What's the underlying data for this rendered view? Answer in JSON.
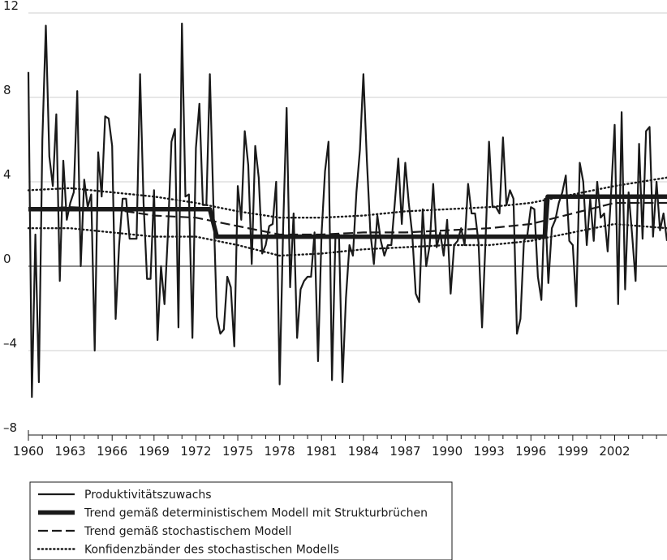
{
  "chart_data": {
    "type": "line",
    "title": "",
    "xlabel": "",
    "ylabel": "",
    "xlim": [
      1960,
      2005.75
    ],
    "ylim": [
      -8,
      12
    ],
    "x_ticks": [
      1960,
      1963,
      1966,
      1969,
      1972,
      1975,
      1978,
      1981,
      1984,
      1987,
      1990,
      1993,
      1996,
      1999,
      2002
    ],
    "x_tick_labels": [
      "1960",
      "1963",
      "1966",
      "1969",
      "1972",
      "1975",
      "1978",
      "1981",
      "1984",
      "1987",
      "1990",
      "1993",
      "1996",
      "1999",
      "2002"
    ],
    "y_ticks": [
      -8,
      -4,
      0,
      4,
      8,
      12
    ],
    "y_tick_labels": [
      "–8",
      "–4",
      "0",
      "4",
      "8",
      "12"
    ],
    "grid": "horizontal",
    "legend_position": "bottom-left",
    "series": [
      {
        "name": "Produktivitätszuwachs",
        "style": "solid-thin",
        "color": "#1a1a1a",
        "points": [
          [
            1960.0,
            9.2
          ],
          [
            1960.25,
            -6.2
          ],
          [
            1960.5,
            1.5
          ],
          [
            1960.75,
            -5.5
          ],
          [
            1961.0,
            6.0
          ],
          [
            1961.25,
            11.4
          ],
          [
            1961.5,
            5.2
          ],
          [
            1961.75,
            3.8
          ],
          [
            1962.0,
            7.2
          ],
          [
            1962.25,
            -0.7
          ],
          [
            1962.5,
            5.0
          ],
          [
            1962.75,
            2.2
          ],
          [
            1963.0,
            3.0
          ],
          [
            1963.25,
            3.5
          ],
          [
            1963.5,
            8.3
          ],
          [
            1963.75,
            0.0
          ],
          [
            1964.0,
            4.1
          ],
          [
            1964.25,
            2.8
          ],
          [
            1964.5,
            3.4
          ],
          [
            1964.75,
            -4.0
          ],
          [
            1965.0,
            5.4
          ],
          [
            1965.25,
            3.3
          ],
          [
            1965.5,
            7.1
          ],
          [
            1965.75,
            7.0
          ],
          [
            1966.0,
            5.7
          ],
          [
            1966.25,
            -2.5
          ],
          [
            1966.5,
            1.0
          ],
          [
            1966.75,
            3.2
          ],
          [
            1967.0,
            3.2
          ],
          [
            1967.25,
            1.3
          ],
          [
            1967.5,
            1.3
          ],
          [
            1967.75,
            1.3
          ],
          [
            1968.0,
            9.1
          ],
          [
            1968.25,
            3.0
          ],
          [
            1968.5,
            -0.6
          ],
          [
            1968.75,
            -0.6
          ],
          [
            1969.0,
            3.6
          ],
          [
            1969.25,
            -3.5
          ],
          [
            1969.5,
            0.0
          ],
          [
            1969.75,
            -1.8
          ],
          [
            1970.0,
            1.6
          ],
          [
            1970.25,
            5.9
          ],
          [
            1970.5,
            6.5
          ],
          [
            1970.75,
            -2.9
          ],
          [
            1971.0,
            11.5
          ],
          [
            1971.25,
            3.3
          ],
          [
            1971.5,
            3.4
          ],
          [
            1971.75,
            -3.4
          ],
          [
            1972.0,
            5.6
          ],
          [
            1972.25,
            7.7
          ],
          [
            1972.5,
            2.9
          ],
          [
            1972.75,
            2.9
          ],
          [
            1973.0,
            9.1
          ],
          [
            1973.25,
            3.0
          ],
          [
            1973.5,
            -2.4
          ],
          [
            1973.75,
            -3.2
          ],
          [
            1974.0,
            -3.0
          ],
          [
            1974.25,
            -0.5
          ],
          [
            1974.5,
            -1.0
          ],
          [
            1974.75,
            -3.8
          ],
          [
            1975.0,
            3.8
          ],
          [
            1975.25,
            2.2
          ],
          [
            1975.5,
            6.4
          ],
          [
            1975.75,
            4.8
          ],
          [
            1976.0,
            0.1
          ],
          [
            1976.25,
            5.7
          ],
          [
            1976.5,
            4.2
          ],
          [
            1976.75,
            0.6
          ],
          [
            1977.0,
            1.0
          ],
          [
            1977.25,
            1.9
          ],
          [
            1977.5,
            2.0
          ],
          [
            1977.75,
            4.0
          ],
          [
            1978.0,
            -5.6
          ],
          [
            1978.25,
            1.8
          ],
          [
            1978.5,
            7.5
          ],
          [
            1978.75,
            -1.0
          ],
          [
            1979.0,
            2.5
          ],
          [
            1979.25,
            -3.4
          ],
          [
            1979.5,
            -1.1
          ],
          [
            1979.75,
            -0.7
          ],
          [
            1980.0,
            -0.5
          ],
          [
            1980.25,
            -0.5
          ],
          [
            1980.5,
            1.6
          ],
          [
            1980.75,
            -4.5
          ],
          [
            1981.0,
            1.5
          ],
          [
            1981.25,
            4.5
          ],
          [
            1981.5,
            5.9
          ],
          [
            1981.75,
            -5.4
          ],
          [
            1982.0,
            1.5
          ],
          [
            1982.25,
            1.5
          ],
          [
            1982.5,
            -5.5
          ],
          [
            1982.75,
            -1.5
          ],
          [
            1983.0,
            1.0
          ],
          [
            1983.25,
            0.5
          ],
          [
            1983.5,
            3.5
          ],
          [
            1983.75,
            5.5
          ],
          [
            1984.0,
            9.1
          ],
          [
            1984.25,
            5.0
          ],
          [
            1984.5,
            1.6
          ],
          [
            1984.75,
            0.1
          ],
          [
            1985.0,
            2.4
          ],
          [
            1985.25,
            1.2
          ],
          [
            1985.5,
            0.5
          ],
          [
            1985.75,
            1.0
          ],
          [
            1986.0,
            1.0
          ],
          [
            1986.25,
            3.0
          ],
          [
            1986.5,
            5.1
          ],
          [
            1986.75,
            2.0
          ],
          [
            1987.0,
            4.9
          ],
          [
            1987.25,
            3.0
          ],
          [
            1987.5,
            1.5
          ],
          [
            1987.75,
            -1.3
          ],
          [
            1988.0,
            -1.7
          ],
          [
            1988.25,
            2.7
          ],
          [
            1988.5,
            0.0
          ],
          [
            1988.75,
            1.0
          ],
          [
            1989.0,
            3.9
          ],
          [
            1989.25,
            0.9
          ],
          [
            1989.5,
            1.6
          ],
          [
            1989.75,
            0.5
          ],
          [
            1990.0,
            2.2
          ],
          [
            1990.25,
            -1.3
          ],
          [
            1990.5,
            1.0
          ],
          [
            1990.75,
            1.2
          ],
          [
            1991.0,
            1.8
          ],
          [
            1991.25,
            1.0
          ],
          [
            1991.5,
            3.9
          ],
          [
            1991.75,
            2.5
          ],
          [
            1992.0,
            2.5
          ],
          [
            1992.25,
            1.1
          ],
          [
            1992.5,
            -2.9
          ],
          [
            1992.75,
            1.2
          ],
          [
            1993.0,
            5.9
          ],
          [
            1993.25,
            2.8
          ],
          [
            1993.5,
            2.8
          ],
          [
            1993.75,
            2.5
          ],
          [
            1994.0,
            6.1
          ],
          [
            1994.25,
            2.9
          ],
          [
            1994.5,
            3.6
          ],
          [
            1994.75,
            3.2
          ],
          [
            1995.0,
            -3.2
          ],
          [
            1995.25,
            -2.5
          ],
          [
            1995.5,
            1.2
          ],
          [
            1995.75,
            1.5
          ],
          [
            1996.0,
            2.8
          ],
          [
            1996.25,
            2.7
          ],
          [
            1996.5,
            -0.5
          ],
          [
            1996.75,
            -1.6
          ],
          [
            1997.0,
            3.2
          ],
          [
            1997.25,
            -0.8
          ],
          [
            1997.5,
            1.8
          ],
          [
            1997.75,
            2.2
          ],
          [
            1998.0,
            3.0
          ],
          [
            1998.25,
            3.5
          ],
          [
            1998.5,
            4.3
          ],
          [
            1998.75,
            1.2
          ],
          [
            1999.0,
            1.0
          ],
          [
            1999.25,
            -1.9
          ],
          [
            1999.5,
            4.9
          ],
          [
            1999.75,
            4.0
          ],
          [
            2000.0,
            1.0
          ],
          [
            2000.25,
            3.2
          ],
          [
            2000.5,
            1.2
          ],
          [
            2000.75,
            4.0
          ],
          [
            2001.0,
            2.3
          ],
          [
            2001.25,
            2.5
          ],
          [
            2001.5,
            0.7
          ],
          [
            2001.75,
            3.5
          ],
          [
            2002.0,
            6.7
          ],
          [
            2002.25,
            -1.8
          ],
          [
            2002.5,
            7.3
          ],
          [
            2002.75,
            -1.1
          ],
          [
            2003.0,
            3.5
          ],
          [
            2003.25,
            1.5
          ],
          [
            2003.5,
            -0.7
          ],
          [
            2003.75,
            5.8
          ],
          [
            2004.0,
            1.3
          ],
          [
            2004.25,
            6.4
          ],
          [
            2004.5,
            6.6
          ],
          [
            2004.75,
            1.4
          ],
          [
            2005.0,
            4.0
          ],
          [
            2005.25,
            1.7
          ],
          [
            2005.5,
            2.5
          ],
          [
            2005.75,
            1.2
          ]
        ]
      },
      {
        "name": "Trend gemäß deterministischem Modell mit Strukturbrüchen",
        "style": "solid-thick",
        "color": "#1a1a1a",
        "points": [
          [
            1960.0,
            2.7
          ],
          [
            1973.0,
            2.7
          ],
          [
            1973.5,
            1.4
          ],
          [
            1997.0,
            1.4
          ],
          [
            1997.2,
            3.3
          ],
          [
            2005.75,
            3.3
          ]
        ]
      },
      {
        "name": "Trend gemäß stochastischem Modell",
        "style": "dashed",
        "color": "#1a1a1a",
        "points": [
          [
            1960.0,
            2.7
          ],
          [
            1963.0,
            2.8
          ],
          [
            1966.0,
            2.7
          ],
          [
            1969.0,
            2.4
          ],
          [
            1972.0,
            2.3
          ],
          [
            1975.0,
            1.9
          ],
          [
            1978.0,
            1.5
          ],
          [
            1981.0,
            1.5
          ],
          [
            1984.0,
            1.6
          ],
          [
            1987.0,
            1.6
          ],
          [
            1990.0,
            1.7
          ],
          [
            1993.0,
            1.8
          ],
          [
            1996.0,
            2.0
          ],
          [
            1999.0,
            2.5
          ],
          [
            2002.0,
            3.0
          ],
          [
            2005.75,
            3.0
          ]
        ]
      },
      {
        "name": "Konfidenzbänder des stochastischen Modells",
        "style": "dotted",
        "color": "#1a1a1a",
        "points": [
          [
            1960.0,
            3.6
          ],
          [
            1963.0,
            3.7
          ],
          [
            1966.0,
            3.5
          ],
          [
            1969.0,
            3.3
          ],
          [
            1972.0,
            3.0
          ],
          [
            1975.0,
            2.6
          ],
          [
            1978.0,
            2.3
          ],
          [
            1981.0,
            2.3
          ],
          [
            1984.0,
            2.4
          ],
          [
            1987.0,
            2.6
          ],
          [
            1990.0,
            2.7
          ],
          [
            1993.0,
            2.8
          ],
          [
            1996.0,
            3.0
          ],
          [
            1999.0,
            3.4
          ],
          [
            2002.0,
            3.8
          ],
          [
            2005.75,
            4.2
          ]
        ]
      },
      {
        "name": "",
        "style": "dotted",
        "color": "#1a1a1a",
        "points": [
          [
            1960.0,
            1.8
          ],
          [
            1963.0,
            1.8
          ],
          [
            1966.0,
            1.6
          ],
          [
            1969.0,
            1.4
          ],
          [
            1972.0,
            1.4
          ],
          [
            1975.0,
            1.0
          ],
          [
            1978.0,
            0.5
          ],
          [
            1981.0,
            0.6
          ],
          [
            1984.0,
            0.8
          ],
          [
            1987.0,
            0.9
          ],
          [
            1990.0,
            1.0
          ],
          [
            1993.0,
            1.0
          ],
          [
            1996.0,
            1.2
          ],
          [
            1999.0,
            1.6
          ],
          [
            2002.0,
            2.0
          ],
          [
            2005.75,
            1.8
          ]
        ]
      }
    ]
  }
}
